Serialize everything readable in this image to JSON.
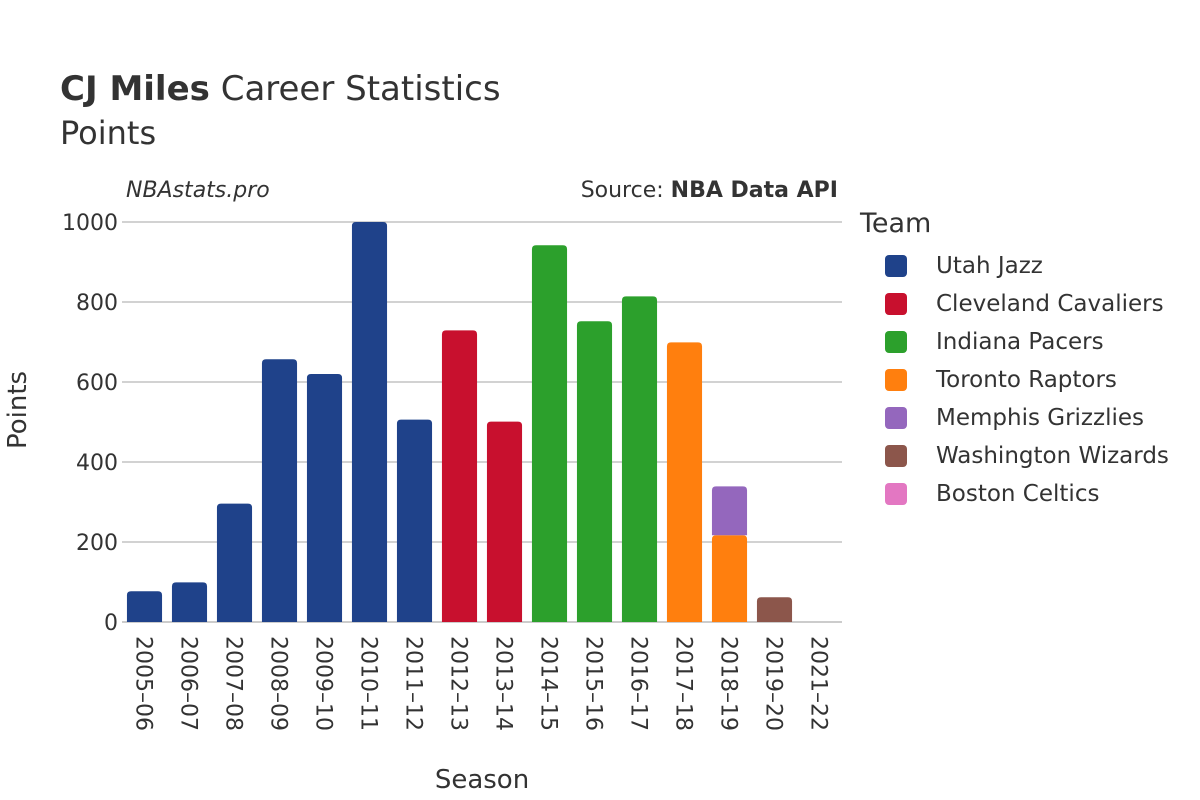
{
  "header": {
    "player_name": "CJ Miles",
    "title_rest": "Career Statistics",
    "subtitle": "Points",
    "brand": "NBAstats.pro",
    "source_prefix": "Source: ",
    "source_name": "NBA Data API"
  },
  "legend": {
    "title": "Team"
  },
  "chart_data": {
    "type": "bar",
    "stacked": true,
    "xlabel": "Season",
    "ylabel": "Points",
    "ylim": [
      0,
      1000
    ],
    "yticks": [
      0,
      200,
      400,
      600,
      800,
      1000
    ],
    "grid": true,
    "legend_position": "right",
    "categories": [
      "2005–06",
      "2006–07",
      "2007–08",
      "2008–09",
      "2009–10",
      "2010–11",
      "2011–12",
      "2012–13",
      "2013–14",
      "2014–15",
      "2015–16",
      "2016–17",
      "2017–18",
      "2018–19",
      "2019–20",
      "2021–22"
    ],
    "series": [
      {
        "name": "Utah Jazz",
        "color": "#1f428a",
        "values": [
          77,
          99,
          296,
          657,
          620,
          1000,
          506,
          0,
          0,
          0,
          0,
          0,
          0,
          0,
          0,
          0
        ]
      },
      {
        "name": "Cleveland Cavaliers",
        "color": "#c8102e",
        "values": [
          0,
          0,
          0,
          0,
          0,
          0,
          0,
          729,
          501,
          0,
          0,
          0,
          0,
          0,
          0,
          0
        ]
      },
      {
        "name": "Indiana Pacers",
        "color": "#2ca02c",
        "values": [
          0,
          0,
          0,
          0,
          0,
          0,
          0,
          0,
          0,
          942,
          752,
          814,
          0,
          0,
          0,
          0
        ]
      },
      {
        "name": "Toronto Raptors",
        "color": "#ff7f0e",
        "values": [
          0,
          0,
          0,
          0,
          0,
          0,
          0,
          0,
          0,
          0,
          0,
          0,
          699,
          217,
          0,
          0
        ]
      },
      {
        "name": "Memphis Grizzlies",
        "color": "#9467bd",
        "values": [
          0,
          0,
          0,
          0,
          0,
          0,
          0,
          0,
          0,
          0,
          0,
          0,
          0,
          122,
          0,
          0
        ]
      },
      {
        "name": "Washington Wizards",
        "color": "#8c564b",
        "values": [
          0,
          0,
          0,
          0,
          0,
          0,
          0,
          0,
          0,
          0,
          0,
          0,
          0,
          0,
          62,
          0
        ]
      },
      {
        "name": "Boston Celtics",
        "color": "#e377c2",
        "values": [
          0,
          0,
          0,
          0,
          0,
          0,
          0,
          0,
          0,
          0,
          0,
          0,
          0,
          0,
          0,
          0
        ]
      }
    ]
  }
}
